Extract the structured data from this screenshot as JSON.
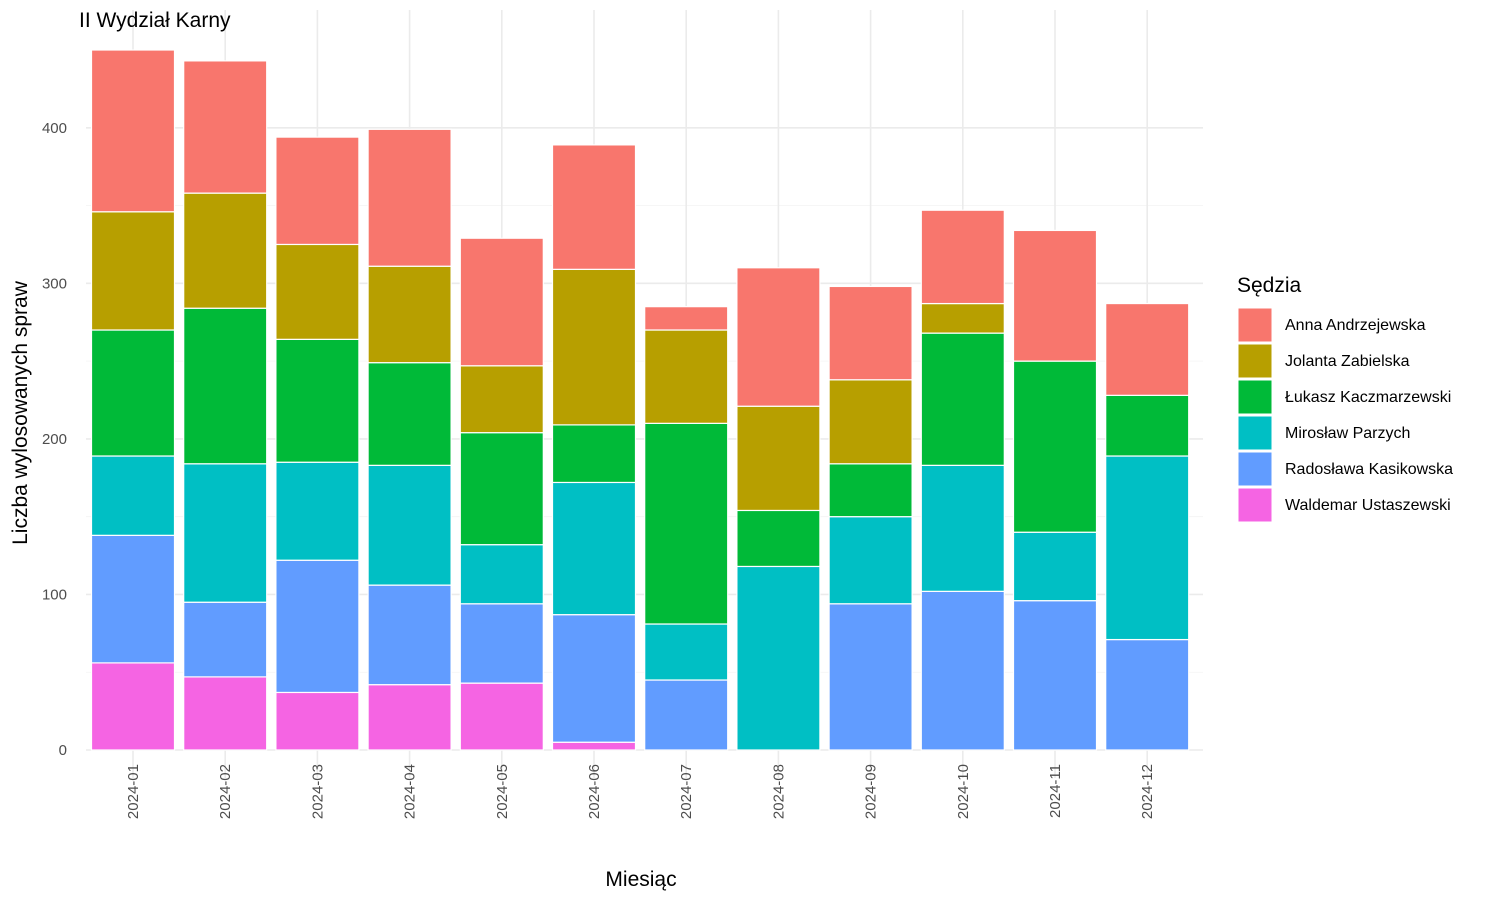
{
  "chart_data": {
    "type": "bar",
    "stacked": true,
    "title": "II Wydział Karny",
    "xlabel": "Miesiąc",
    "ylabel": "Liczba wylosowanych spraw",
    "ylim": [
      0,
      450
    ],
    "yticks": [
      0,
      100,
      200,
      300,
      400
    ],
    "grid": true,
    "legend": {
      "title": "Sędzia",
      "position": "right"
    },
    "categories": [
      "2024-01",
      "2024-02",
      "2024-03",
      "2024-04",
      "2024-05",
      "2024-06",
      "2024-07",
      "2024-08",
      "2024-09",
      "2024-10",
      "2024-11",
      "2024-12"
    ],
    "series": [
      {
        "name": "Anna Andrzejewska",
        "color": "#F8766D",
        "values": [
          104,
          85,
          69,
          88,
          82,
          80,
          15,
          89,
          60,
          60,
          84,
          59
        ]
      },
      {
        "name": "Jolanta Zabielska",
        "color": "#B79F00",
        "values": [
          76,
          74,
          61,
          62,
          43,
          100,
          60,
          67,
          54,
          19,
          0,
          0
        ]
      },
      {
        "name": "Łukasz Kaczmarzewski",
        "color": "#00BA38",
        "values": [
          81,
          100,
          79,
          66,
          72,
          37,
          129,
          36,
          34,
          85,
          110,
          39
        ]
      },
      {
        "name": "Mirosław Parzych",
        "color": "#00BFC4",
        "values": [
          51,
          89,
          63,
          77,
          38,
          85,
          36,
          118,
          56,
          81,
          44,
          118
        ]
      },
      {
        "name": "Radosława Kasikowska",
        "color": "#619CFF",
        "values": [
          82,
          48,
          85,
          64,
          51,
          82,
          45,
          0,
          94,
          102,
          96,
          71
        ]
      },
      {
        "name": "Waldemar Ustaszewski",
        "color": "#F564E3",
        "values": [
          56,
          47,
          37,
          42,
          43,
          5,
          0,
          0,
          0,
          0,
          0,
          0
        ]
      }
    ]
  }
}
